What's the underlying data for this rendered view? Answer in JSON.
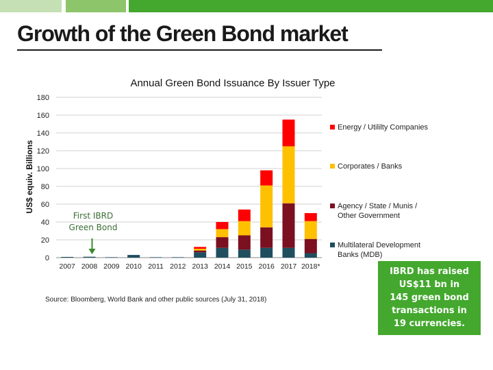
{
  "header": {
    "title": "Growth of the Green Bond market"
  },
  "callout": {
    "lines": [
      "IBRD has raised",
      "US$11 bn in",
      "145 green bond",
      "transactions in",
      "19 currencies."
    ]
  },
  "source_note": "Source: Bloomberg, World Bank and other public sources (July 31, 2018)",
  "annotation": {
    "text_line1": "First IBRD",
    "text_line2": "Green Bond"
  },
  "chart_data": {
    "type": "bar",
    "stacked": true,
    "title": "Annual Green Bond Issuance By Issuer Type",
    "xlabel": "",
    "ylabel": "US$ equiv. Billions",
    "ylim": [
      0,
      180
    ],
    "yticks": [
      0,
      20,
      40,
      60,
      80,
      100,
      120,
      140,
      160,
      180
    ],
    "grid": true,
    "legend_position": "right",
    "categories": [
      "2007",
      "2008",
      "2009",
      "2010",
      "2011",
      "2012",
      "2013",
      "2014",
      "2015",
      "2016",
      "2017",
      "2018*"
    ],
    "series": [
      {
        "name": "Multilateral Development Banks (MDB)",
        "color": "#1f4e5f",
        "values": [
          0.8,
          1.0,
          0.5,
          3.0,
          0.5,
          0.5,
          6,
          11,
          9,
          11,
          11,
          5
        ]
      },
      {
        "name": "Agency / State / Munis / Other Government",
        "color": "#7b1020",
        "values": [
          0,
          0,
          0,
          0,
          0,
          0,
          2,
          12,
          16,
          23,
          50,
          16
        ]
      },
      {
        "name": "Corporates / Banks",
        "color": "#ffc000",
        "values": [
          0,
          0,
          0,
          0,
          0,
          0,
          2,
          9,
          16,
          47,
          64,
          20
        ]
      },
      {
        "name": "Energy / Utililty Companies",
        "color": "#ff0000",
        "values": [
          0,
          0,
          0,
          0,
          0,
          0,
          2,
          8,
          13,
          17,
          30,
          9
        ]
      }
    ],
    "annotation_category": "2008"
  }
}
